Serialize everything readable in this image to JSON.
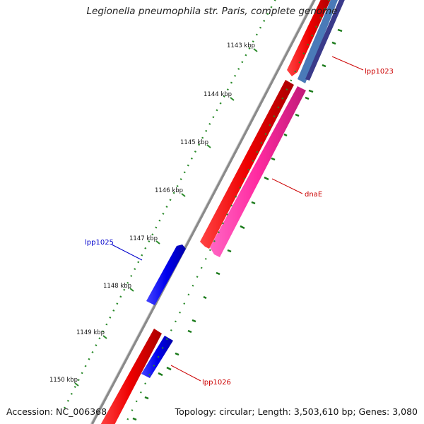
{
  "title": "Legionella pneumophila str. Paris, complete genome",
  "accession": "Accession: NC_006368",
  "summary": "Topology: circular; Length: 3,503,610 bp; Genes: 3,080",
  "tick_labels": [
    "1143 kbp",
    "1144 kbp",
    "1145 kbp",
    "1146 kbp",
    "1147 kbp",
    "1148 kbp",
    "1149 kbp",
    "1150 kbp"
  ],
  "genes": [
    {
      "name": "lpp1023",
      "color": "#cc0000"
    },
    {
      "name": "dnaE",
      "color": "#cc0000"
    },
    {
      "name": "lpp1025",
      "color": "#0000cc"
    },
    {
      "name": "lpp1026",
      "color": "#cc0000"
    }
  ],
  "colors": {
    "backbone": "#8a8a8a",
    "cds_forward": "#ee1111",
    "cds_reverse": "#1111ee",
    "cds_pink": "#ff2aa0",
    "cds_steel": "#4a7ab8",
    "cds_slate": "#3a3a8a",
    "tick_dot": "#2a8a2a",
    "gc_mark": "#1a7a1a"
  }
}
